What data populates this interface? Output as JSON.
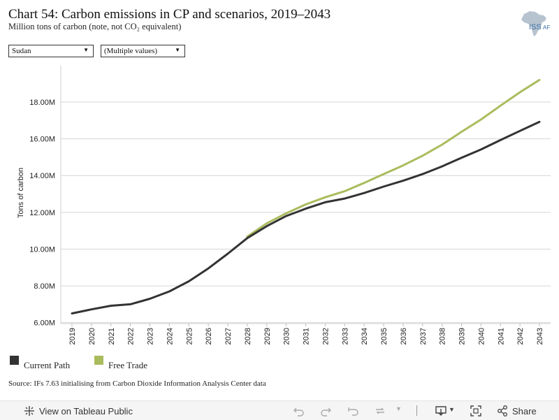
{
  "header": {
    "title": "Chart 54: Carbon emissions in CP and scenarios, 2019–2043",
    "subtitle": "Million tons of carbon (note, not CO₂ equivalent)",
    "logo_text": "ISS",
    "logo_suffix": "AF"
  },
  "filters": {
    "country": "Sudan",
    "scenario": "(Multiple values)"
  },
  "chart_data": {
    "type": "line",
    "title": "",
    "xlabel": "",
    "ylabel": "Tons of carbon",
    "x": [
      "2019",
      "2020",
      "2021",
      "2022",
      "2023",
      "2024",
      "2025",
      "2026",
      "2027",
      "2028",
      "2029",
      "2030",
      "2031",
      "2032",
      "2033",
      "2034",
      "2035",
      "2036",
      "2037",
      "2038",
      "2039",
      "2040",
      "2041",
      "2042",
      "2043"
    ],
    "series": [
      {
        "name": "Current Path",
        "color": "#333333",
        "values": [
          6.5,
          6.72,
          6.92,
          7.0,
          7.3,
          7.7,
          8.25,
          8.95,
          9.75,
          10.6,
          11.25,
          11.8,
          12.2,
          12.55,
          12.75,
          13.05,
          13.4,
          13.72,
          14.08,
          14.5,
          14.97,
          15.42,
          15.93,
          16.43,
          16.92
        ]
      },
      {
        "name": "Free Trade",
        "color": "#a9bc5d",
        "values": [
          null,
          null,
          null,
          null,
          null,
          null,
          null,
          null,
          null,
          10.68,
          11.4,
          11.95,
          12.43,
          12.82,
          13.15,
          13.6,
          14.08,
          14.55,
          15.08,
          15.68,
          16.38,
          17.05,
          17.8,
          18.53,
          19.2
        ]
      }
    ],
    "yticks": [
      6,
      8,
      10,
      12,
      14,
      16,
      18
    ],
    "ytick_labels": [
      "6.00M",
      "8.00M",
      "10.00M",
      "12.00M",
      "14.00M",
      "16.00M",
      "18.00M"
    ],
    "ylim": [
      5.95,
      19.9
    ],
    "grid": true,
    "legend_position": "bottom-left"
  },
  "source": "Source: IFs 7.63 initialising from Carbon Dioxide Information Analysis Center data",
  "toolbar": {
    "view_label": "View on Tableau Public",
    "share_label": "Share"
  }
}
